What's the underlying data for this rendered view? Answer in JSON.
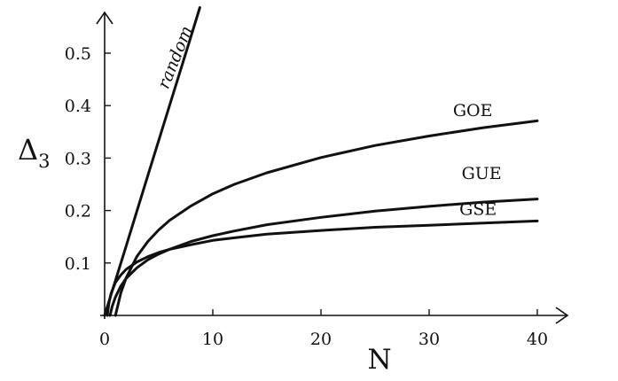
{
  "chart_data": {
    "type": "line",
    "title": "",
    "xlabel": "N",
    "ylabel": "Δ",
    "ylabel_subscript": "3",
    "xlim": [
      0,
      42
    ],
    "ylim": [
      0,
      0.57
    ],
    "x_ticks": [
      0,
      10,
      20,
      30,
      40
    ],
    "x_tick_labels": [
      "0",
      "10",
      "20",
      "30",
      "40"
    ],
    "y_ticks": [
      0.1,
      0.2,
      0.3,
      0.4,
      0.5
    ],
    "y_tick_labels": [
      "0.1",
      "0.2",
      "0.3",
      "0.4",
      "0.5"
    ],
    "grid": false,
    "legend": "none (curves labelled inline)",
    "series": [
      {
        "name": "random",
        "x": [
          0,
          2,
          4,
          6,
          8,
          8.8
        ],
        "y": [
          0,
          0.133,
          0.267,
          0.4,
          0.533,
          0.587
        ]
      },
      {
        "name": "GOE",
        "x": [
          1,
          1.5,
          2,
          3,
          4,
          5,
          6,
          8,
          10,
          12,
          15,
          20,
          25,
          30,
          35,
          40
        ],
        "y": [
          0.0,
          0.043,
          0.072,
          0.113,
          0.141,
          0.163,
          0.181,
          0.209,
          0.232,
          0.25,
          0.272,
          0.301,
          0.324,
          0.342,
          0.358,
          0.371
        ]
      },
      {
        "name": "GUE",
        "x": [
          0.5,
          0.7,
          1,
          1.5,
          2,
          3,
          4,
          5,
          6,
          8,
          10,
          12,
          15,
          20,
          25,
          30,
          35,
          40
        ],
        "y": [
          0.0,
          0.017,
          0.035,
          0.056,
          0.071,
          0.091,
          0.106,
          0.117,
          0.126,
          0.141,
          0.152,
          0.161,
          0.173,
          0.187,
          0.199,
          0.208,
          0.216,
          0.222
        ]
      },
      {
        "name": "GSE",
        "x": [
          0.25,
          0.4,
          0.6,
          1,
          1.5,
          2,
          3,
          4,
          5,
          6,
          8,
          10,
          12,
          15,
          20,
          25,
          30,
          35,
          40
        ],
        "y": [
          0.0,
          0.024,
          0.042,
          0.063,
          0.077,
          0.088,
          0.102,
          0.112,
          0.12,
          0.126,
          0.135,
          0.143,
          0.148,
          0.155,
          0.162,
          0.168,
          0.172,
          0.176,
          0.18
        ]
      }
    ]
  }
}
